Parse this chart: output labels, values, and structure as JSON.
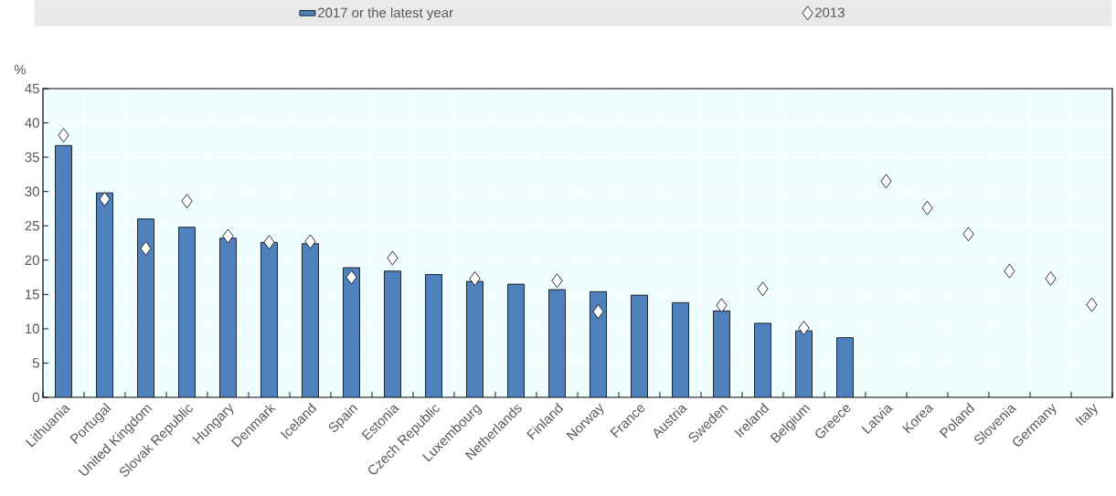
{
  "chart_data": {
    "type": "bar",
    "ylabel": "%",
    "categories": [
      "Lithuania",
      "Portugal",
      "United Kingdom",
      "Slovak Republic",
      "Hungary",
      "Denmark",
      "Iceland",
      "Spain",
      "Estonia",
      "Czech Republic",
      "Luxembourg",
      "Netherlands",
      "Finland",
      "Norway",
      "France",
      "Austria",
      "Sweden",
      "Ireland",
      "Belgium",
      "Greece",
      "Latvia",
      "Korea",
      "Poland",
      "Slovenia",
      "Germany",
      "Italy"
    ],
    "series": [
      {
        "name": "2017 or the latest year",
        "color": "#4f81bd",
        "values": [
          36.7,
          29.8,
          26.0,
          24.8,
          23.2,
          22.6,
          22.4,
          18.9,
          18.4,
          17.9,
          16.9,
          16.5,
          15.7,
          15.4,
          14.9,
          13.8,
          12.6,
          10.8,
          9.7,
          8.7,
          null,
          null,
          null,
          null,
          null,
          null
        ]
      },
      {
        "name": "2013",
        "type": "scatter",
        "color": "#ffffff",
        "marker": "diamond",
        "values": [
          38.2,
          28.9,
          21.7,
          28.6,
          23.5,
          22.6,
          22.7,
          17.5,
          20.3,
          null,
          17.3,
          null,
          17.0,
          12.5,
          null,
          null,
          13.4,
          15.8,
          10.1,
          null,
          31.5,
          27.6,
          23.8,
          18.4,
          17.3,
          13.5
        ]
      }
    ],
    "ylim": [
      0,
      45
    ],
    "yticks": [
      0,
      5,
      10,
      15,
      20,
      25,
      30,
      35,
      40,
      45
    ],
    "grid": true,
    "legend": "top"
  }
}
